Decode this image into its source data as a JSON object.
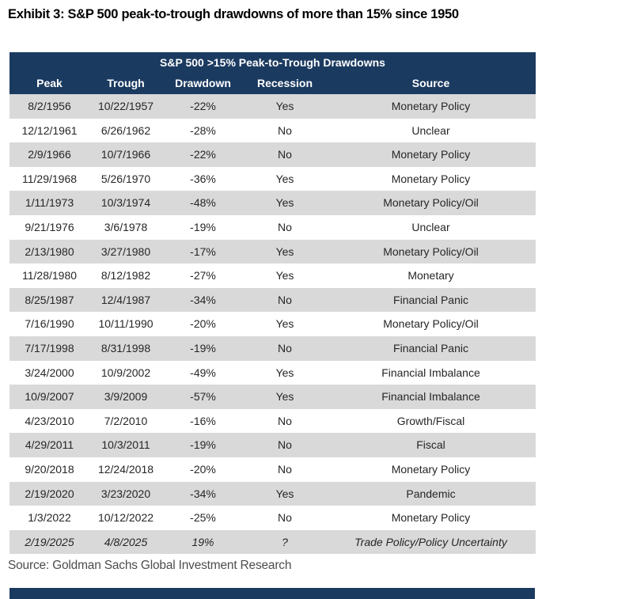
{
  "title": "Exhibit 3: S&P 500 peak-to-trough drawdowns of more than 15% since 1950",
  "source_note": "Source: Goldman Sachs Global Investment Research",
  "colors": {
    "header_bg": "#1b3a60",
    "header_text": "#ffffff",
    "row_alt_bg": "#d9d9d9",
    "body_text": "#262626",
    "source_text": "#4d4d4d"
  },
  "table": {
    "header_title": "S&P 500 >15% Peak-to-Trough Drawdowns",
    "columns": [
      "Peak",
      "Trough",
      "Drawdown",
      "Recession",
      "Source"
    ]
  },
  "chart_data": {
    "type": "table",
    "title": "S&P 500 >15% Peak-to-Trough Drawdowns",
    "columns": [
      "Peak",
      "Trough",
      "Drawdown",
      "Recession",
      "Source"
    ],
    "rows": [
      {
        "peak": "8/2/1956",
        "trough": "10/22/1957",
        "drawdown": "-22%",
        "recession": "Yes",
        "source": "Monetary Policy",
        "italic": false
      },
      {
        "peak": "12/12/1961",
        "trough": "6/26/1962",
        "drawdown": "-28%",
        "recession": "No",
        "source": "Unclear",
        "italic": false
      },
      {
        "peak": "2/9/1966",
        "trough": "10/7/1966",
        "drawdown": "-22%",
        "recession": "No",
        "source": "Monetary Policy",
        "italic": false
      },
      {
        "peak": "11/29/1968",
        "trough": "5/26/1970",
        "drawdown": "-36%",
        "recession": "Yes",
        "source": "Monetary Policy",
        "italic": false
      },
      {
        "peak": "1/11/1973",
        "trough": "10/3/1974",
        "drawdown": "-48%",
        "recession": "Yes",
        "source": "Monetary Policy/Oil",
        "italic": false
      },
      {
        "peak": "9/21/1976",
        "trough": "3/6/1978",
        "drawdown": "-19%",
        "recession": "No",
        "source": "Unclear",
        "italic": false
      },
      {
        "peak": "2/13/1980",
        "trough": "3/27/1980",
        "drawdown": "-17%",
        "recession": "Yes",
        "source": "Monetary Policy/Oil",
        "italic": false
      },
      {
        "peak": "11/28/1980",
        "trough": "8/12/1982",
        "drawdown": "-27%",
        "recession": "Yes",
        "source": "Monetary",
        "italic": false
      },
      {
        "peak": "8/25/1987",
        "trough": "12/4/1987",
        "drawdown": "-34%",
        "recession": "No",
        "source": "Financial Panic",
        "italic": false
      },
      {
        "peak": "7/16/1990",
        "trough": "10/11/1990",
        "drawdown": "-20%",
        "recession": "Yes",
        "source": "Monetary Policy/Oil",
        "italic": false
      },
      {
        "peak": "7/17/1998",
        "trough": "8/31/1998",
        "drawdown": "-19%",
        "recession": "No",
        "source": "Financial Panic",
        "italic": false
      },
      {
        "peak": "3/24/2000",
        "trough": "10/9/2002",
        "drawdown": "-49%",
        "recession": "Yes",
        "source": "Financial Imbalance",
        "italic": false
      },
      {
        "peak": "10/9/2007",
        "trough": "3/9/2009",
        "drawdown": "-57%",
        "recession": "Yes",
        "source": "Financial Imbalance",
        "italic": false
      },
      {
        "peak": "4/23/2010",
        "trough": "7/2/2010",
        "drawdown": "-16%",
        "recession": "No",
        "source": "Growth/Fiscal",
        "italic": false
      },
      {
        "peak": "4/29/2011",
        "trough": "10/3/2011",
        "drawdown": "-19%",
        "recession": "No",
        "source": "Fiscal",
        "italic": false
      },
      {
        "peak": "9/20/2018",
        "trough": "12/24/2018",
        "drawdown": "-20%",
        "recession": "No",
        "source": "Monetary Policy",
        "italic": false
      },
      {
        "peak": "2/19/2020",
        "trough": "3/23/2020",
        "drawdown": "-34%",
        "recession": "Yes",
        "source": "Pandemic",
        "italic": false
      },
      {
        "peak": "1/3/2022",
        "trough": "10/12/2022",
        "drawdown": "-25%",
        "recession": "No",
        "source": "Monetary Policy",
        "italic": false
      },
      {
        "peak": "2/19/2025",
        "trough": "4/8/2025",
        "drawdown": "19%",
        "recession": "?",
        "source": "Trade Policy/Policy Uncertainty",
        "italic": true
      }
    ]
  }
}
